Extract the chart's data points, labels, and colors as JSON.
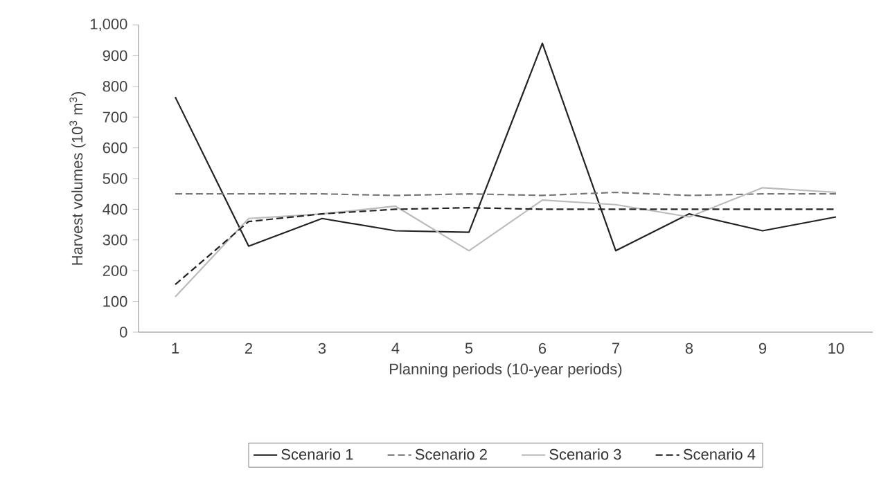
{
  "chart_data": {
    "type": "line",
    "xlabel": "Planning periods (10-year periods)",
    "ylabel": "Harvest volumes (10$^{3}$ m$^{3}$)",
    "categories": [
      "1",
      "2",
      "3",
      "4",
      "5",
      "6",
      "7",
      "8",
      "9",
      "10"
    ],
    "ylim": [
      0,
      1000
    ],
    "yticks": [
      0,
      100,
      200,
      300,
      400,
      500,
      600,
      700,
      800,
      900,
      {
        "value": 1000,
        "label": "1,000"
      }
    ],
    "legend": "bottom",
    "grid": false,
    "marker": "none",
    "series": [
      {
        "name": "Scenario 1",
        "color": "#222222",
        "line_style": "solid",
        "values": [
          765,
          280,
          370,
          330,
          325,
          940,
          265,
          385,
          330,
          375
        ]
      },
      {
        "name": "Scenario 2",
        "color": "#777777",
        "line_style": "dashed",
        "values": [
          450,
          450,
          450,
          445,
          450,
          445,
          455,
          445,
          450,
          450
        ]
      },
      {
        "name": "Scenario 3",
        "color": "#bbbbbb",
        "line_style": "solid",
        "values": [
          115,
          370,
          385,
          410,
          265,
          430,
          415,
          375,
          470,
          455
        ]
      },
      {
        "name": "Scenario 4",
        "color": "#222222",
        "line_style": "dashed",
        "values": [
          155,
          360,
          385,
          400,
          405,
          400,
          400,
          400,
          400,
          400
        ]
      }
    ]
  }
}
